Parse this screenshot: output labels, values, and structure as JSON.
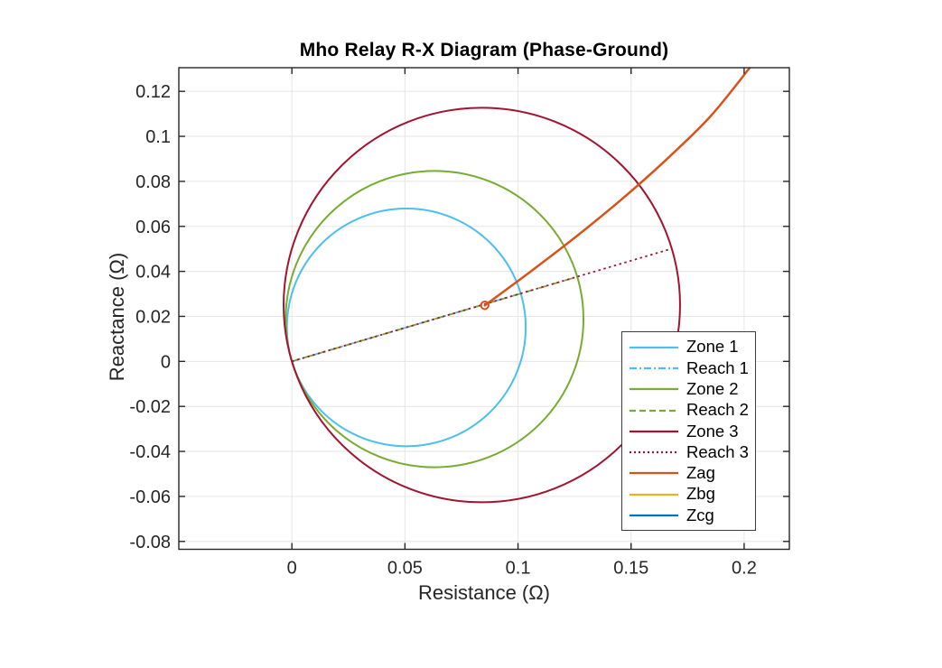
{
  "chart_data": {
    "type": "line",
    "title": "Mho Relay R-X Diagram (Phase-Ground)",
    "xlabel": "Resistance (Ω)",
    "ylabel": "Reactance (Ω)",
    "xlim": [
      -0.05,
      0.22
    ],
    "ylim": [
      -0.0835,
      0.1305
    ],
    "xticks": [
      0,
      0.05,
      0.1,
      0.15,
      0.2
    ],
    "yticks": [
      -0.08,
      -0.06,
      -0.04,
      -0.02,
      0,
      0.02,
      0.04,
      0.06,
      0.08,
      0.1,
      0.12
    ],
    "grid": true,
    "legend_position": "inside-lower-right",
    "colors": {
      "grid": "#e6e6e6",
      "axis": "#262626",
      "zone1": "#4DBEEE",
      "zone2": "#77AC30",
      "zone3": "#A2142F",
      "zag": "#D95319",
      "zbg": "#EDB120",
      "zcg": "#0072BD"
    },
    "zones": [
      {
        "label": "Zone 1",
        "reach_label": "Reach 1",
        "color": "#4DBEEE",
        "reach_point": {
          "R": 0.1012,
          "X": 0.0302
        },
        "reach_linestyle": "dash-dot",
        "circle": "mho circle through origin, diameter = reach vector"
      },
      {
        "label": "Zone 2",
        "reach_label": "Reach 2",
        "color": "#77AC30",
        "reach_point": {
          "R": 0.1262,
          "X": 0.0376
        },
        "reach_linestyle": "dashed",
        "circle": "mho circle through origin, diameter = reach vector"
      },
      {
        "label": "Zone 3",
        "reach_label": "Reach 3",
        "color": "#A2142F",
        "reach_point": {
          "R": 0.168,
          "X": 0.0501
        },
        "reach_linestyle": "dotted",
        "circle": "mho circle through origin, diameter = reach vector"
      }
    ],
    "trajectories": [
      {
        "label": "Zag",
        "color": "#D95319",
        "marker": "open-circle-at-start",
        "points": [
          [
            0.0853,
            0.0249
          ],
          [
            0.105,
            0.0395
          ],
          [
            0.125,
            0.0549
          ],
          [
            0.145,
            0.0713
          ],
          [
            0.165,
            0.0891
          ],
          [
            0.185,
            0.1088
          ],
          [
            0.2025,
            0.1305
          ]
        ]
      },
      {
        "label": "Zbg",
        "color": "#EDB120",
        "marker": "none",
        "points": []
      },
      {
        "label": "Zcg",
        "color": "#0072BD",
        "marker": "none",
        "points": []
      }
    ]
  }
}
